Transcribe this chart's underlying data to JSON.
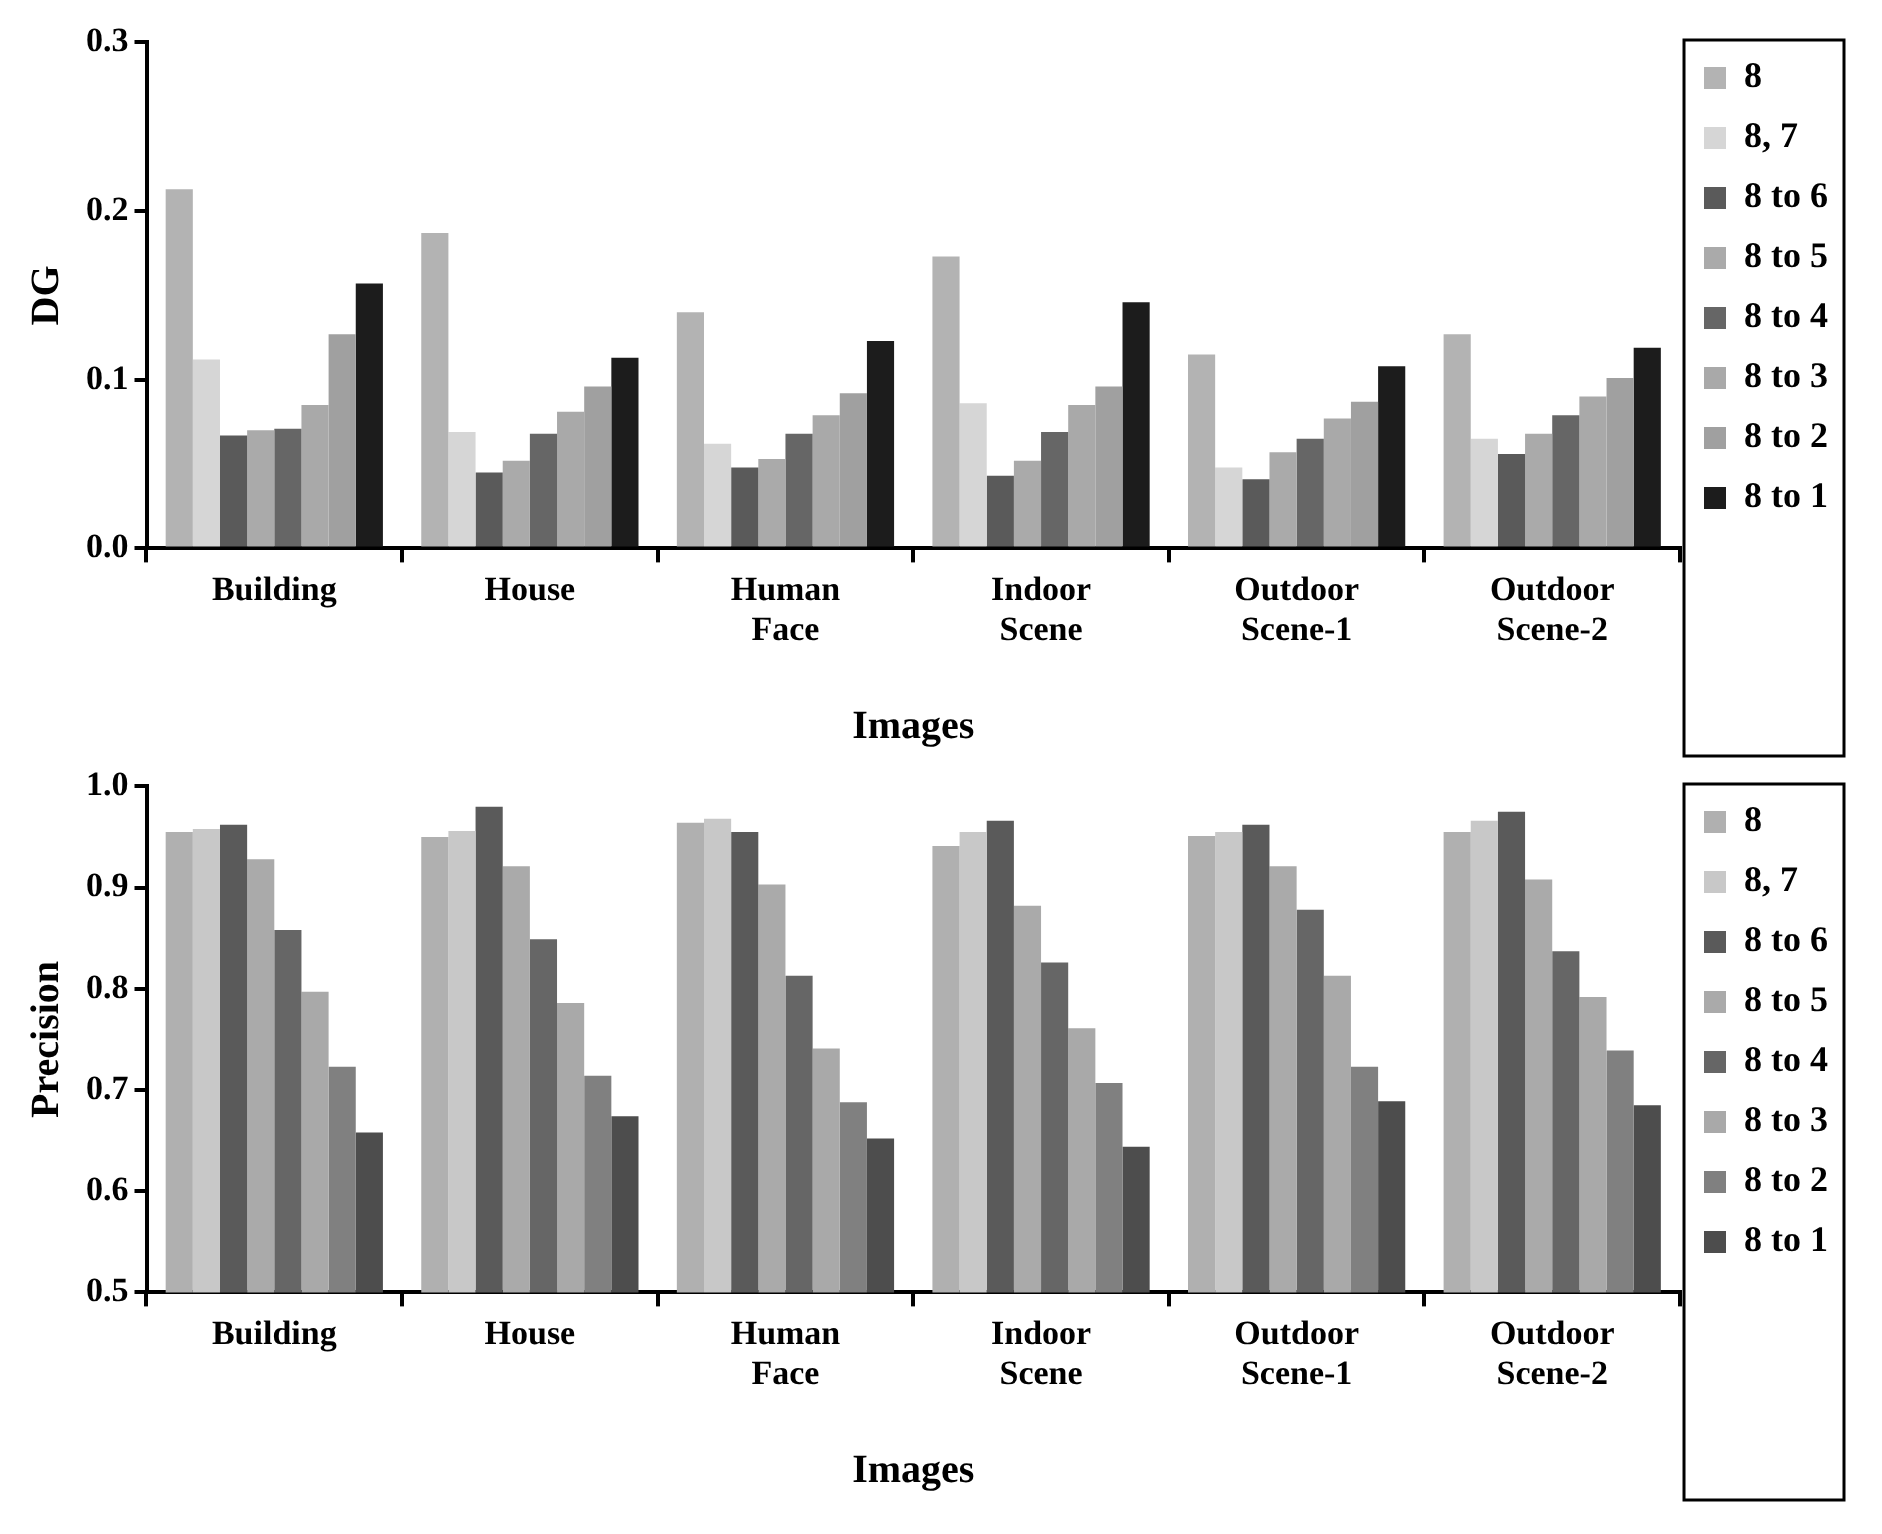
{
  "chart_data": [
    {
      "type": "bar",
      "xlabel": "Images",
      "ylabel": "DG",
      "categories": [
        "Building",
        "House",
        "Human Face",
        "Indoor Scene",
        "Outdoor Scene-1",
        "Outdoor Scene-2"
      ],
      "ylim": [
        0,
        0.3
      ],
      "yticks": [
        {
          "value": 0,
          "label": "0.0"
        },
        0.1,
        0.2,
        0.3
      ],
      "grid": false,
      "legend": "right",
      "series": [
        {
          "name": "8",
          "color": "#b3b3b3",
          "values": [
            0.213,
            0.187,
            0.14,
            0.173,
            0.115,
            0.127
          ]
        },
        {
          "name": "8, 7",
          "color": "#d6d6d6",
          "values": [
            0.112,
            0.069,
            0.062,
            0.086,
            0.048,
            0.065
          ]
        },
        {
          "name": "8 to 6",
          "color": "#5a5a5a",
          "values": [
            0.067,
            0.045,
            0.048,
            0.043,
            0.041,
            0.056
          ]
        },
        {
          "name": "8 to 5",
          "color": "#aaaaaa",
          "values": [
            0.07,
            0.052,
            0.053,
            0.052,
            0.057,
            0.068
          ]
        },
        {
          "name": "8 to 4",
          "color": "#666666",
          "values": [
            0.071,
            0.068,
            0.068,
            0.069,
            0.065,
            0.079
          ]
        },
        {
          "name": "8 to 3",
          "color": "#a9a9a9",
          "values": [
            0.085,
            0.081,
            0.079,
            0.085,
            0.077,
            0.09
          ]
        },
        {
          "name": "8 to 2",
          "color": "#a0a0a0",
          "values": [
            0.127,
            0.096,
            0.092,
            0.096,
            0.087,
            0.101
          ]
        },
        {
          "name": "8 to 1",
          "color": "#1c1c1c",
          "values": [
            0.157,
            0.113,
            0.123,
            0.146,
            0.108,
            0.119
          ]
        }
      ]
    },
    {
      "type": "bar",
      "xlabel": "Images",
      "ylabel": "Precision",
      "categories": [
        "Building",
        "House",
        "Human Face",
        "Indoor Scene",
        "Outdoor Scene-1",
        "Outdoor Scene-2"
      ],
      "ylim": [
        0.5,
        1.0
      ],
      "yticks": [
        0.5,
        0.6,
        0.7,
        0.8,
        0.9,
        {
          "value": 1,
          "label": "1.0"
        }
      ],
      "grid": false,
      "legend": "right",
      "series": [
        {
          "name": "8",
          "color": "#b0b0b0",
          "values": [
            0.955,
            0.95,
            0.964,
            0.941,
            0.951,
            0.955
          ]
        },
        {
          "name": "8, 7",
          "color": "#c8c8c8",
          "values": [
            0.958,
            0.956,
            0.968,
            0.955,
            0.955,
            0.966
          ]
        },
        {
          "name": "8 to 6",
          "color": "#5a5a5a",
          "values": [
            0.962,
            0.98,
            0.955,
            0.966,
            0.962,
            0.975
          ]
        },
        {
          "name": "8 to 5",
          "color": "#aaaaaa",
          "values": [
            0.928,
            0.921,
            0.903,
            0.882,
            0.921,
            0.908
          ]
        },
        {
          "name": "8 to 4",
          "color": "#666666",
          "values": [
            0.858,
            0.849,
            0.813,
            0.826,
            0.878,
            0.837
          ]
        },
        {
          "name": "8 to 3",
          "color": "#a9a9a9",
          "values": [
            0.797,
            0.786,
            0.741,
            0.761,
            0.813,
            0.792
          ]
        },
        {
          "name": "8 to 2",
          "color": "#808080",
          "values": [
            0.723,
            0.714,
            0.688,
            0.707,
            0.723,
            0.739
          ]
        },
        {
          "name": "8 to 1",
          "color": "#4d4d4d",
          "values": [
            0.658,
            0.674,
            0.652,
            0.644,
            0.689,
            0.685
          ]
        }
      ]
    }
  ]
}
